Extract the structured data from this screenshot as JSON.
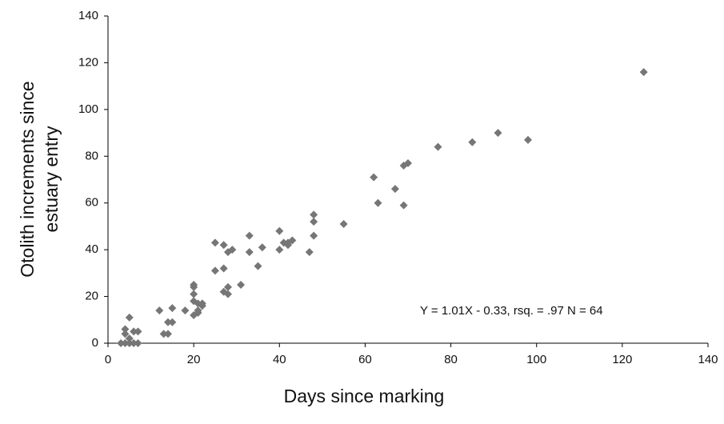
{
  "chart_data": {
    "type": "scatter",
    "xlabel": "Days since marking",
    "ylabel": [
      "Otolith increments  since",
      "estuary entry"
    ],
    "annotation": "Y = 1.01X - 0.33, rsq. = .97  N = 64",
    "color": "#767676",
    "xlim": [
      0,
      140
    ],
    "xticks": [
      0,
      20,
      40,
      60,
      80,
      100,
      120,
      140
    ],
    "ylim": [
      0,
      140
    ],
    "yticks": [
      0,
      20,
      40,
      60,
      80,
      100,
      120,
      140
    ],
    "series": [
      {
        "x": [
          125,
          98,
          91,
          85,
          77,
          70,
          69,
          69,
          67,
          63,
          62,
          55,
          48,
          48,
          48,
          47,
          43,
          42,
          42,
          41,
          40,
          40,
          36,
          35,
          33,
          33,
          31,
          29,
          28,
          28,
          27,
          27,
          27,
          28,
          25,
          25,
          22,
          21,
          21,
          20,
          20,
          20,
          20,
          20,
          21,
          18,
          15,
          15,
          14,
          14,
          13,
          12,
          7,
          7,
          6,
          6,
          5,
          5,
          4,
          4,
          4,
          3,
          5,
          22
        ],
        "y": [
          116,
          87,
          90,
          86,
          84,
          77,
          76,
          59,
          66,
          60,
          71,
          51,
          55,
          52,
          46,
          39,
          44,
          43,
          42,
          43,
          48,
          40,
          41,
          33,
          46,
          39,
          25,
          40,
          39,
          24,
          42,
          32,
          22,
          21,
          43,
          31,
          17,
          17,
          14,
          25,
          24,
          21,
          18,
          12,
          13,
          14,
          15,
          9,
          9,
          4,
          4,
          14,
          5,
          0,
          5,
          0,
          11,
          0,
          6,
          4,
          0,
          0,
          2,
          16
        ]
      }
    ]
  }
}
